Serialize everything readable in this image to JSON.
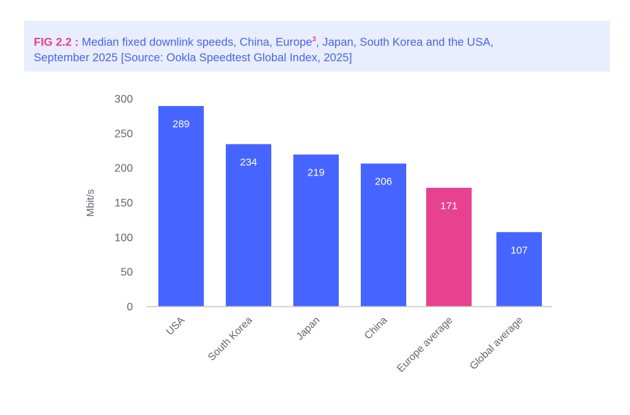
{
  "caption": {
    "fig_label": "FIG 2.2 :",
    "text_before": " Median fixed downlink speeds, China, Europe",
    "footnote": "3",
    "text_after": ", Japan, South Korea and the USA,",
    "line2": "September 2025  [Source: Ookla Speedtest Global Index, 2025]"
  },
  "colors": {
    "bar": "#4664ff",
    "highlight": "#e8418f",
    "axis_text": "#666370"
  },
  "chart_data": {
    "type": "bar",
    "title": "Median fixed downlink speeds, China, Europe, Japan, South Korea and the USA, September 2025",
    "xlabel": "",
    "ylabel": "Mbit/s",
    "ylim": [
      0,
      300
    ],
    "yticks": [
      0,
      50,
      100,
      150,
      200,
      250,
      300
    ],
    "categories": [
      "USA",
      "South Korea",
      "Japan",
      "China",
      "Europe average",
      "Global average"
    ],
    "values": [
      289,
      234,
      219,
      206,
      171,
      107
    ],
    "highlight": [
      "Europe average"
    ],
    "grid": false
  }
}
